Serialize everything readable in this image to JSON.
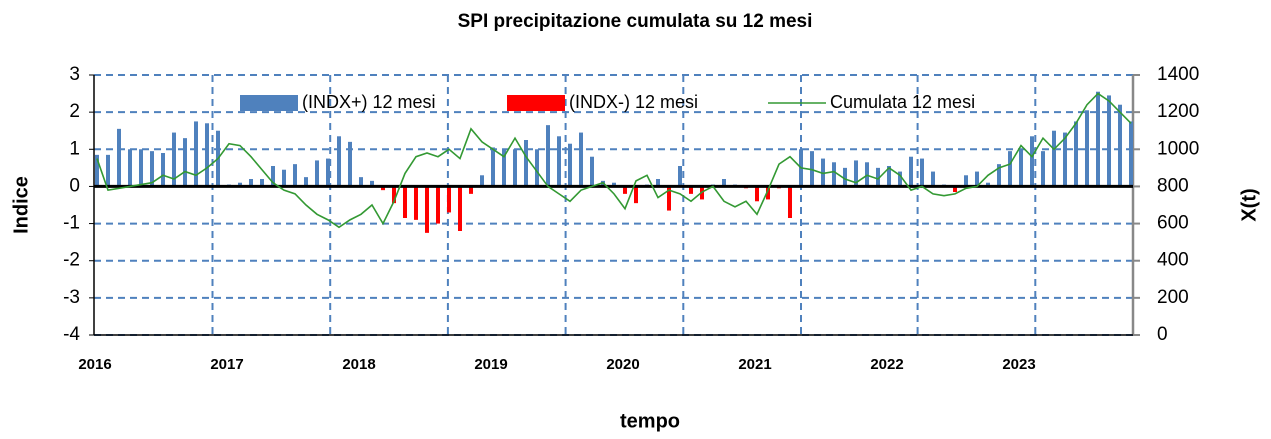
{
  "chart_data": {
    "type": "bar",
    "title": "SPI precipitazione cumulata su 12 mesi",
    "x_label": "tempo",
    "y_label": "Indice",
    "y2_label": "X(t)",
    "categories": [
      "2016",
      null,
      null,
      null,
      null,
      null,
      null,
      null,
      null,
      null,
      null,
      null,
      "2017",
      null,
      null,
      null,
      null,
      null,
      null,
      null,
      null,
      null,
      null,
      null,
      "2018",
      null,
      null,
      null,
      null,
      null,
      null,
      null,
      null,
      null,
      null,
      null,
      "2019",
      null,
      null,
      null,
      null,
      null,
      null,
      null,
      null,
      null,
      null,
      null,
      "2020",
      null,
      null,
      null,
      null,
      null,
      null,
      null,
      null,
      null,
      null,
      null,
      "2021",
      null,
      null,
      null,
      null,
      null,
      null,
      null,
      null,
      null,
      null,
      null,
      "2022",
      null,
      null,
      null,
      null,
      null,
      null,
      null,
      null,
      null,
      null,
      null,
      "2023",
      null,
      null,
      null,
      null,
      null,
      null,
      null,
      null,
      null,
      null
    ],
    "series": [
      {
        "name": "(INDX+) 12 mesi",
        "color": "#4f81bd",
        "values": [
          0.85,
          0.85,
          1.55,
          1.0,
          1.0,
          0.95,
          0.9,
          1.45,
          1.3,
          1.75,
          1.7,
          1.5,
          0.05,
          0.1,
          0.2,
          0.2,
          0.55,
          0.45,
          0.6,
          0.25,
          0.7,
          0.75,
          1.35,
          1.2,
          0.25,
          0.15,
          null,
          null,
          null,
          null,
          null,
          null,
          null,
          null,
          null,
          0.3,
          1.05,
          1.0,
          1.0,
          1.25,
          1.0,
          1.65,
          1.35,
          1.15,
          1.45,
          0.8,
          0.15,
          0.1,
          null,
          null,
          0.05,
          0.2,
          null,
          0.55,
          null,
          null,
          0.05,
          0.2,
          0.05,
          null,
          null,
          null,
          null,
          null,
          1.0,
          0.95,
          0.75,
          0.65,
          0.5,
          0.7,
          0.65,
          0.5,
          0.55,
          0.4,
          0.8,
          0.75,
          0.4,
          0.05,
          null,
          0.3,
          0.4,
          0.1,
          0.6,
          0.95,
          1.0,
          1.35,
          0.95,
          1.5,
          1.45,
          1.75,
          2.05,
          2.55,
          2.45,
          2.2,
          1.75
        ]
      },
      {
        "name": "(INDX-) 12 mesi",
        "color": "#ff0000",
        "values": [
          null,
          null,
          null,
          null,
          null,
          null,
          null,
          null,
          null,
          null,
          null,
          null,
          null,
          null,
          null,
          null,
          null,
          null,
          null,
          null,
          null,
          null,
          null,
          null,
          null,
          null,
          -0.1,
          -0.45,
          -0.85,
          -0.9,
          -1.25,
          -1.0,
          -0.7,
          -1.2,
          -0.2,
          null,
          null,
          null,
          null,
          null,
          null,
          null,
          null,
          null,
          null,
          null,
          null,
          null,
          -0.2,
          -0.45,
          null,
          null,
          -0.65,
          null,
          -0.2,
          -0.35,
          null,
          null,
          null,
          -0.05,
          -0.4,
          -0.35,
          -0.05,
          -0.85,
          null,
          null,
          null,
          null,
          null,
          null,
          null,
          null,
          null,
          null,
          null,
          null,
          null,
          null,
          -0.15,
          null,
          null,
          null,
          null,
          null,
          null,
          null,
          null,
          null,
          null,
          null,
          null,
          null,
          null,
          null,
          null
        ]
      },
      {
        "name": "Cumulata 12 mesi",
        "color": "#339933",
        "axis": "y2",
        "type": "line",
        "values": [
          950,
          780,
          790,
          800,
          810,
          820,
          860,
          840,
          880,
          860,
          900,
          950,
          1030,
          1020,
          960,
          890,
          820,
          780,
          760,
          700,
          650,
          620,
          580,
          620,
          650,
          700,
          600,
          720,
          870,
          960,
          980,
          960,
          1000,
          950,
          1110,
          1040,
          1000,
          960,
          1060,
          960,
          880,
          800,
          760,
          720,
          780,
          800,
          820,
          760,
          680,
          830,
          860,
          740,
          780,
          760,
          720,
          770,
          800,
          720,
          690,
          720,
          650,
          780,
          920,
          960,
          900,
          890,
          870,
          880,
          840,
          820,
          860,
          840,
          900,
          860,
          780,
          800,
          760,
          750,
          760,
          790,
          800,
          860,
          900,
          920,
          1020,
          960,
          1060,
          1000,
          1060,
          1140,
          1240,
          1300,
          1260,
          1200,
          1140
        ]
      }
    ],
    "ylim": [
      -4,
      3
    ],
    "yticks": [
      -4,
      -3,
      -2,
      -1,
      0,
      1,
      2,
      3
    ],
    "y2lim": [
      0,
      1400
    ],
    "y2ticks": [
      0,
      200,
      400,
      600,
      800,
      1000,
      1200,
      1400
    ],
    "xgrid": [
      10.5,
      21.2,
      31.9,
      42.6,
      53.3,
      64,
      74.6,
      85.3
    ],
    "grid": true
  }
}
